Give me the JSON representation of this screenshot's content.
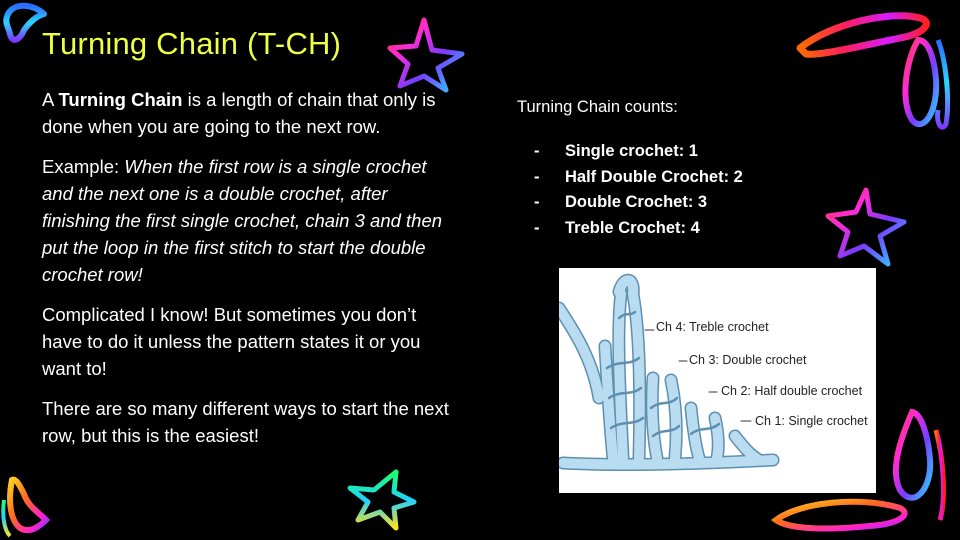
{
  "slide": {
    "title": "Turning Chain (T-CH)",
    "intro": {
      "prefix": "A ",
      "bold": "Turning Chain",
      "rest": " is a length of chain that only is done when you are going to the next row."
    },
    "example": {
      "prefix": "Example: ",
      "italic": "When the first row is a single crochet and the next one is a double crochet, after finishing the first single crochet, chain 3 and then put the loop in the first stitch to start the double crochet row!"
    },
    "note": "Complicated I know! But sometimes you don’t have to do it unless the pattern states it or you want to!",
    "closing": "There are so many different ways to start the next row, but this is the easiest!",
    "counts_heading": "Turning Chain counts:",
    "counts": [
      {
        "dash": "-",
        "label": "Single crochet: 1"
      },
      {
        "dash": "-",
        "label": "Half Double Crochet: 2"
      },
      {
        "dash": "-",
        "label": "Double Crochet: 3"
      },
      {
        "dash": "-",
        "label": "Treble Crochet: 4"
      }
    ],
    "figure": {
      "labels": [
        "Ch 4: Treble crochet",
        "Ch 3: Double crochet",
        "Ch 2: Half double crochet",
        "Ch 1: Single crochet"
      ],
      "yarn_color": "#b9dcf0",
      "outline_color": "#5d8fb0"
    },
    "colors": {
      "background": "#000000",
      "title": "#eeff41",
      "text": "#ffffff"
    },
    "decorations": [
      "rainbow-star-icon",
      "rainbow-loop-icon",
      "rainbow-squiggle-icon"
    ]
  }
}
